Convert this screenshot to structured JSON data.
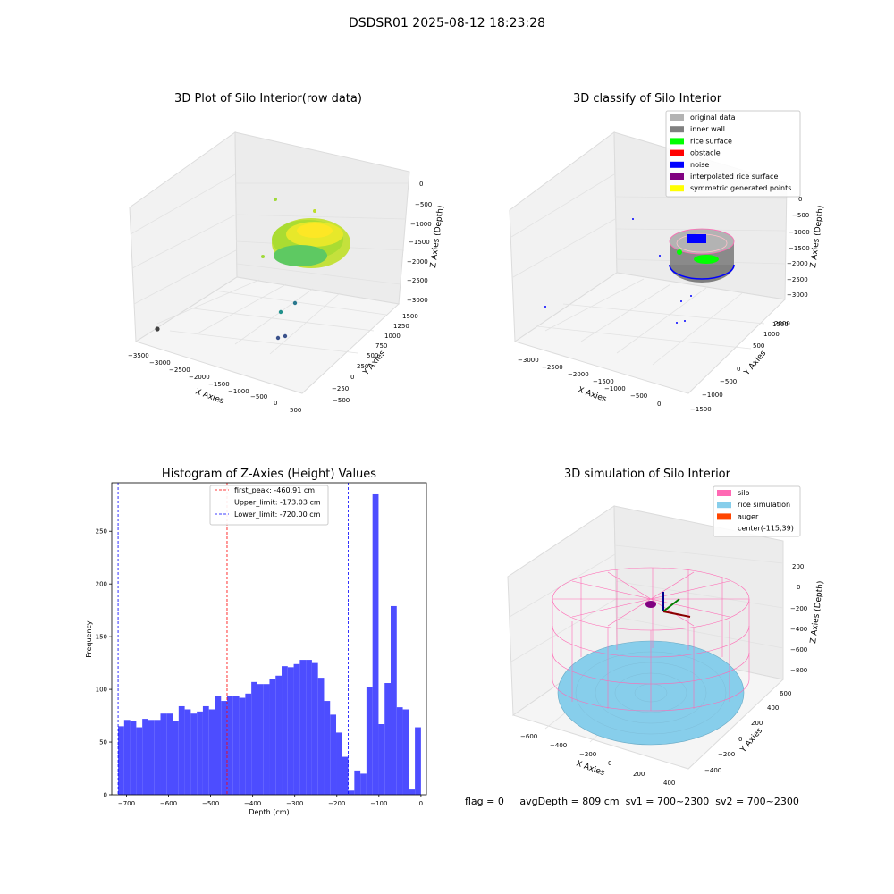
{
  "figure": {
    "title": "DSDSR01 2025-08-12 18:23:28"
  },
  "status": {
    "flag": "flag = 0",
    "avg_depth": "avgDepth = 809 cm",
    "sv1": "sv1 = 700~2300",
    "sv2": "sv2 = 700~2300"
  },
  "chart_data": [
    {
      "type": "scatter",
      "title": "3D Plot of Silo Interior(row data)",
      "xlabel": "X Axies",
      "ylabel": "Y Axies",
      "zlabel": "Z Axies (Depth)",
      "x_ticks": [
        "−3500",
        "−3000",
        "−2500",
        "−2000",
        "−1500",
        "−1000",
        "−500",
        "0",
        "500"
      ],
      "y_ticks": [
        "−500",
        "−250",
        "0",
        "250",
        "500",
        "750",
        "1000",
        "1250",
        "1500"
      ],
      "z_ticks": [
        "0",
        "−500",
        "−1000",
        "−1500",
        "−2000",
        "−2500",
        "−3000"
      ]
    },
    {
      "type": "scatter",
      "title": "3D classify of Silo Interior",
      "xlabel": "X Axies",
      "ylabel": "Y Axies",
      "zlabel": "Z Axies (Depth)",
      "x_ticks": [
        "−3000",
        "−2500",
        "−2000",
        "−1500",
        "−1000",
        "−500",
        "0"
      ],
      "y_ticks": [
        "−1500",
        "−1000",
        "−500",
        "0",
        "500",
        "1000",
        "1500",
        "2000"
      ],
      "z_ticks": [
        "0",
        "−500",
        "−1000",
        "−1500",
        "−2000",
        "−2500",
        "−3000"
      ],
      "legend": [
        {
          "label": "original data",
          "color": "#b3b3b3"
        },
        {
          "label": "inner wall",
          "color": "#808080"
        },
        {
          "label": "rice surface",
          "color": "#00ff00"
        },
        {
          "label": "obstacle",
          "color": "#ff0000"
        },
        {
          "label": "noise",
          "color": "#0000ff"
        },
        {
          "label": "interpolated rice surface",
          "color": "#800080"
        },
        {
          "label": "symmetric generated points",
          "color": "#ffff00"
        }
      ],
      "legend_position": "top-right"
    },
    {
      "type": "bar",
      "title": "Histogram of Z-Axies (Height) Values",
      "xlabel": "Depth (cm)",
      "ylabel": "Frequency",
      "xlim": [
        -735,
        13
      ],
      "ylim": [
        0,
        296
      ],
      "x_ticks": [
        -700,
        -600,
        -500,
        -400,
        -300,
        -200,
        -100,
        0
      ],
      "x_tick_labels": [
        "−700",
        "−600",
        "−500",
        "−400",
        "−300",
        "−200",
        "−100",
        "0"
      ],
      "y_ticks": [
        0,
        50,
        100,
        150,
        200,
        250
      ],
      "y_tick_labels": [
        "0",
        "50",
        "100",
        "150",
        "200",
        "250"
      ],
      "bin_start": -720,
      "bin_width": 14.4,
      "values": [
        65,
        71,
        70,
        64,
        72,
        71,
        71,
        77,
        77,
        70,
        84,
        81,
        77,
        79,
        84,
        81,
        94,
        89,
        94,
        94,
        92,
        96,
        107,
        105,
        105,
        110,
        113,
        122,
        121,
        124,
        128,
        128,
        125,
        111,
        89,
        76,
        59,
        36,
        4,
        23,
        20,
        102,
        285,
        67,
        106,
        179,
        83,
        81,
        5,
        64
      ],
      "bar_color": "#4d4dff",
      "lines": [
        {
          "label": "first_peak: -460.91 cm",
          "x": -460.91,
          "color": "#ff0000"
        },
        {
          "label": "Upper_limit: -173.03 cm",
          "x": -173.03,
          "color": "#0000ff"
        },
        {
          "label": "Lower_limit: -720.00 cm",
          "x": -720.0,
          "color": "#0000ff"
        }
      ],
      "legend_position": "upper center"
    },
    {
      "type": "scatter",
      "title": "3D simulation of Silo Interior",
      "xlabel": "X Axies",
      "ylabel": "Y Axies",
      "zlabel": "Z Axies (Depth)",
      "x_ticks": [
        "−600",
        "−400",
        "−200",
        "0",
        "200",
        "400"
      ],
      "y_ticks": [
        "−400",
        "−200",
        "0",
        "200",
        "400",
        "600"
      ],
      "z_ticks": [
        "200",
        "0",
        "−200",
        "−400",
        "−600",
        "−800"
      ],
      "legend": [
        {
          "label": "silo",
          "color": "#ff69b4"
        },
        {
          "label": "rice simulation",
          "color": "#87ceeb"
        },
        {
          "label": "auger",
          "color": "#ff4500"
        },
        {
          "label": "center(-115,39)",
          "color": ""
        }
      ],
      "legend_position": "top-right"
    }
  ]
}
